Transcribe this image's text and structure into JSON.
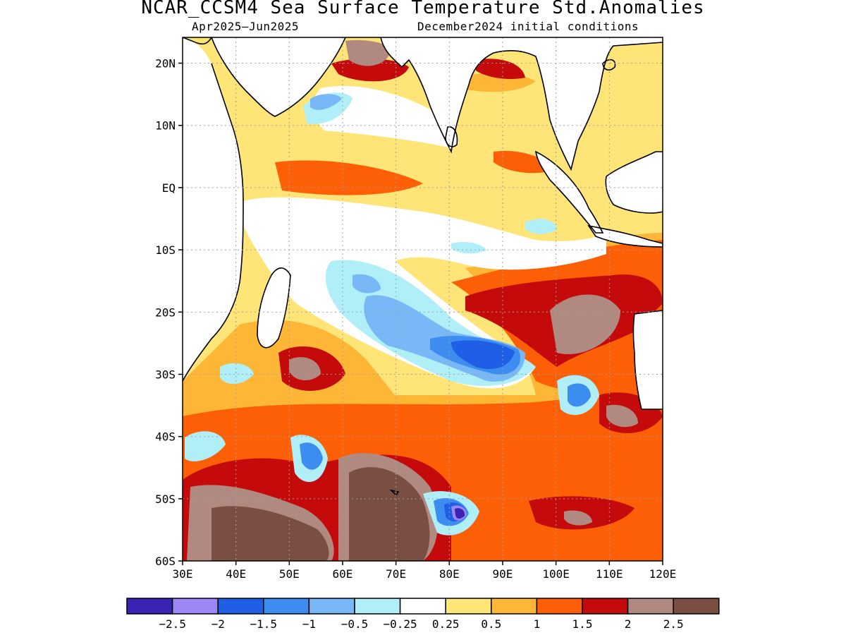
{
  "title": "NCAR_CCSM4 Sea Surface Temperature Std.Anomalies",
  "period": "Apr2025–Jun2025",
  "init": "December2024 initial conditions",
  "lat_labels": [
    "20N",
    "10N",
    "EQ",
    "10S",
    "20S",
    "30S",
    "40S",
    "50S",
    "60S"
  ],
  "lon_labels": [
    "30E",
    "40E",
    "50E",
    "60E",
    "70E",
    "80E",
    "90E",
    "100E",
    "110E",
    "120E"
  ],
  "colorbar": {
    "colors": [
      "#3a22b4",
      "#9c87f4",
      "#1e5fe6",
      "#3d8df0",
      "#78b8f6",
      "#b0eef8",
      "#ffffff",
      "#ffe478",
      "#fdb635",
      "#fc5f05",
      "#c40a0a",
      "#b08a80",
      "#7a4e42"
    ],
    "labels": [
      "−2.5",
      "−2",
      "−1.5",
      "−1",
      "−0.5",
      "−0.25",
      "0.25",
      "0.5",
      "1",
      "1.5",
      "2",
      "2.5"
    ]
  }
}
